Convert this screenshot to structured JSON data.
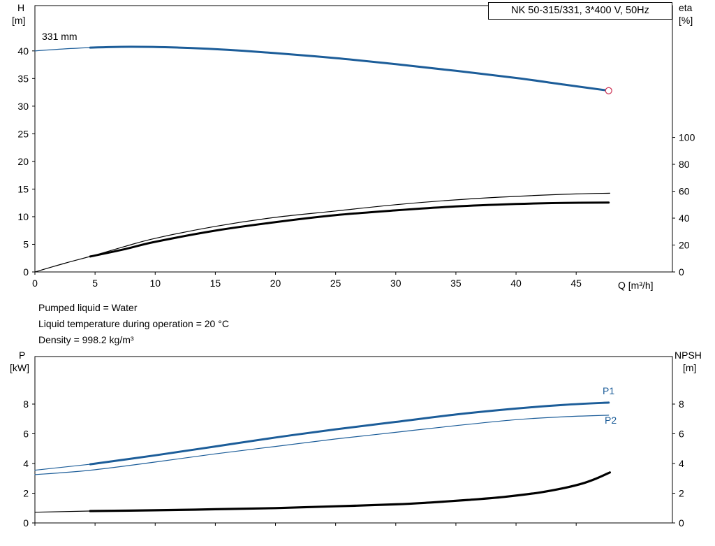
{
  "title_box": "NK 50-315/331, 3*400 V, 50Hz",
  "axes_labels": {
    "head": "H",
    "head_unit": "[m]",
    "eta": "eta",
    "eta_unit": "[%]",
    "power": "P",
    "power_unit": "[kW]",
    "npsh": "NPSH",
    "npsh_unit": "[m]",
    "flow": "Q [m³/h]"
  },
  "curve_labels": {
    "impeller": "331 mm",
    "p1": "P1",
    "p2": "P2"
  },
  "info_lines": {
    "pumped_liquid": "Pumped liquid = Water",
    "temperature": "Liquid temperature during operation = 20 °C",
    "density": "Density = 998.2 kg/m³"
  },
  "colors": {
    "curve_blue": "#1c5d99",
    "curve_black": "#000000",
    "marker": "#cd3355",
    "frame": "#000000"
  },
  "chart_data": [
    {
      "id": "head-eta-chart",
      "type": "line",
      "title": "NK 50-315/331, 3*400 V, 50Hz",
      "grid": false,
      "x_axis": {
        "label": "Q [m³/h]",
        "min": 0,
        "max": 53,
        "ticks": [
          0,
          5,
          10,
          15,
          20,
          25,
          30,
          35,
          40,
          45
        ],
        "show_tick_labels": true
      },
      "y_axis_left": {
        "label": "H [m]",
        "min": 0,
        "max": 48.2,
        "ticks": [
          0,
          5,
          10,
          15,
          20,
          25,
          30,
          35,
          40
        ]
      },
      "y_axis_right": {
        "label": "eta [%]",
        "min": 0,
        "max": 198,
        "ticks": [
          0,
          20,
          40,
          60,
          80,
          100
        ]
      },
      "series": [
        {
          "name": "head-331mm-lead-in",
          "axis": "left",
          "color": "curve_blue",
          "width": 1.2,
          "points": [
            [
              0,
              40.0
            ],
            [
              2.3,
              40.35
            ],
            [
              4.6,
              40.6
            ]
          ]
        },
        {
          "name": "head-331mm",
          "axis": "left",
          "color": "curve_blue",
          "width": 3,
          "end_marker": "circle",
          "points": [
            [
              4.6,
              40.6
            ],
            [
              8,
              40.75
            ],
            [
              12,
              40.6
            ],
            [
              16,
              40.2
            ],
            [
              20,
              39.6
            ],
            [
              25,
              38.7
            ],
            [
              30,
              37.6
            ],
            [
              35,
              36.4
            ],
            [
              40,
              35.1
            ],
            [
              44,
              33.9
            ],
            [
              47.7,
              32.8
            ]
          ]
        },
        {
          "name": "eta-pump",
          "axis": "right",
          "color": "curve_black",
          "width": 1.2,
          "points": [
            [
              0,
              0
            ],
            [
              2.5,
              6.5
            ],
            [
              5,
              12.5
            ],
            [
              7.5,
              19
            ],
            [
              10,
              25
            ],
            [
              15,
              33.9
            ],
            [
              20,
              40.6
            ],
            [
              25,
              45.3
            ],
            [
              30,
              50
            ],
            [
              35,
              53.6
            ],
            [
              40,
              56.2
            ],
            [
              45,
              58
            ],
            [
              47.8,
              58.5
            ]
          ]
        },
        {
          "name": "eta-pump-motor",
          "axis": "right",
          "color": "curve_black",
          "width": 3,
          "points": [
            [
              4.6,
              11.5
            ],
            [
              7.5,
              17
            ],
            [
              10,
              22.4
            ],
            [
              15,
              30.7
            ],
            [
              20,
              37
            ],
            [
              25,
              42.2
            ],
            [
              30,
              45.8
            ],
            [
              35,
              48.7
            ],
            [
              40,
              50.5
            ],
            [
              44,
              51.3
            ],
            [
              47.7,
              51.6
            ]
          ]
        }
      ]
    },
    {
      "id": "power-npsh-chart",
      "type": "line",
      "title": "",
      "grid": false,
      "x_axis": {
        "label": "",
        "min": 0,
        "max": 53,
        "ticks": [
          0,
          5,
          10,
          15,
          20,
          25,
          30,
          35,
          40,
          45
        ],
        "show_tick_labels": false
      },
      "y_axis_left": {
        "label": "P [kW]",
        "min": 0,
        "max": 11.2,
        "ticks": [
          0,
          2,
          4,
          6,
          8
        ]
      },
      "y_axis_right": {
        "label": "NPSH [m]",
        "min": 0,
        "max": 11.2,
        "ticks": [
          0,
          2,
          4,
          6,
          8
        ]
      },
      "series": [
        {
          "name": "p1-lead-in",
          "axis": "left",
          "color": "curve_blue",
          "width": 1.2,
          "points": [
            [
              0,
              3.55
            ],
            [
              4.6,
              3.95
            ]
          ]
        },
        {
          "name": "p1",
          "axis": "left",
          "color": "curve_blue",
          "width": 3,
          "label": "P1",
          "points": [
            [
              4.6,
              3.95
            ],
            [
              10,
              4.55
            ],
            [
              15,
              5.15
            ],
            [
              20,
              5.75
            ],
            [
              25,
              6.3
            ],
            [
              30,
              6.8
            ],
            [
              35,
              7.3
            ],
            [
              40,
              7.7
            ],
            [
              44,
              7.95
            ],
            [
              47.7,
              8.1
            ]
          ]
        },
        {
          "name": "p2",
          "axis": "left",
          "color": "curve_blue",
          "width": 1.2,
          "label": "P2",
          "points": [
            [
              0,
              3.25
            ],
            [
              4.6,
              3.55
            ],
            [
              10,
              4.1
            ],
            [
              15,
              4.65
            ],
            [
              20,
              5.15
            ],
            [
              25,
              5.65
            ],
            [
              30,
              6.1
            ],
            [
              35,
              6.55
            ],
            [
              40,
              6.95
            ],
            [
              44,
              7.15
            ],
            [
              47.7,
              7.25
            ]
          ]
        },
        {
          "name": "npsh-lead-in",
          "axis": "right",
          "color": "curve_black",
          "width": 1.2,
          "points": [
            [
              0,
              0.72
            ],
            [
              4.6,
              0.8
            ]
          ]
        },
        {
          "name": "npsh",
          "axis": "right",
          "color": "curve_black",
          "width": 3.2,
          "points": [
            [
              4.6,
              0.8
            ],
            [
              10,
              0.85
            ],
            [
              15,
              0.92
            ],
            [
              20,
              1.0
            ],
            [
              25,
              1.12
            ],
            [
              30,
              1.25
            ],
            [
              33,
              1.38
            ],
            [
              36,
              1.55
            ],
            [
              39,
              1.75
            ],
            [
              42,
              2.05
            ],
            [
              44,
              2.35
            ],
            [
              45.5,
              2.65
            ],
            [
              46.7,
              3.0
            ],
            [
              47.8,
              3.4
            ]
          ]
        }
      ]
    }
  ]
}
